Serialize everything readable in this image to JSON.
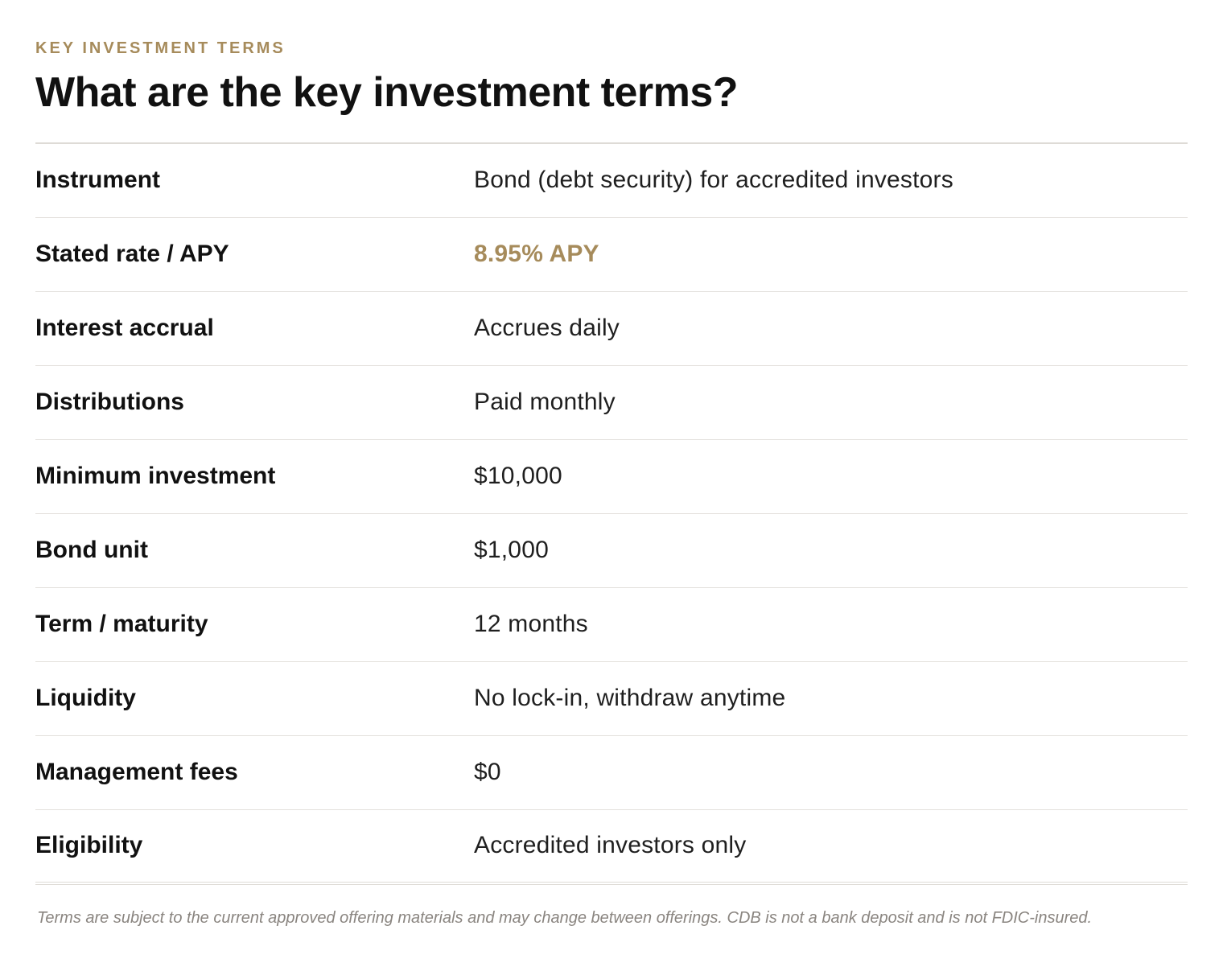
{
  "section": {
    "eyebrow": "KEY INVESTMENT TERMS",
    "title": "What are the key investment terms?"
  },
  "terms": [
    {
      "label": "Instrument",
      "value": "Bond (debt security) for accredited investors"
    },
    {
      "label": "Stated rate / APY",
      "value": "8.95% APY",
      "highlight": true
    },
    {
      "label": "Interest accrual",
      "value": "Accrues daily"
    },
    {
      "label": "Distributions",
      "value": "Paid monthly"
    },
    {
      "label": "Minimum investment",
      "value": "$10,000"
    },
    {
      "label": "Bond unit",
      "value": "$1,000"
    },
    {
      "label": "Term / maturity",
      "value": "12 months"
    },
    {
      "label": "Liquidity",
      "value": "No lock-in, withdraw anytime"
    },
    {
      "label": "Management fees",
      "value": "$0"
    },
    {
      "label": "Eligibility",
      "value": "Accredited investors only"
    }
  ],
  "disclaimer": "Terms are subject to the current approved offering materials and may change between offerings. CDB is not a bank deposit and is not FDIC-insured.",
  "colors": {
    "accent": "#a68b5b",
    "text": "#111111",
    "muted": "#8a8580",
    "divider": "#e3e0dc"
  }
}
